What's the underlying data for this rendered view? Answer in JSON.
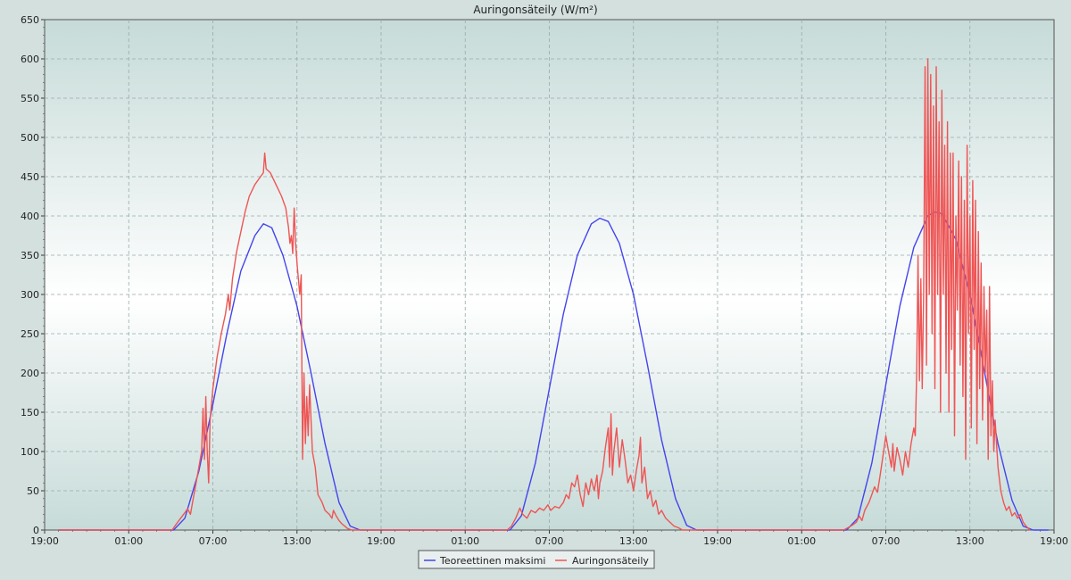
{
  "chart_data": {
    "type": "line",
    "title": "Auringonsäteily (W/m²)",
    "xlabel": "",
    "ylabel": "",
    "x_unit": "hours",
    "xlim": [
      0,
      72
    ],
    "ylim": [
      0,
      650
    ],
    "yticks": [
      0,
      50,
      100,
      150,
      200,
      250,
      300,
      350,
      400,
      450,
      500,
      550,
      600,
      650
    ],
    "xticks": [
      {
        "x": 0,
        "label": "19:00"
      },
      {
        "x": 6,
        "label": "01:00"
      },
      {
        "x": 12,
        "label": "07:00"
      },
      {
        "x": 18,
        "label": "13:00"
      },
      {
        "x": 24,
        "label": "19:00"
      },
      {
        "x": 30,
        "label": "01:00"
      },
      {
        "x": 36,
        "label": "07:00"
      },
      {
        "x": 42,
        "label": "13:00"
      },
      {
        "x": 48,
        "label": "19:00"
      },
      {
        "x": 54,
        "label": "01:00"
      },
      {
        "x": 60,
        "label": "07:00"
      },
      {
        "x": 66,
        "label": "13:00"
      },
      {
        "x": 72,
        "label": "19:00"
      }
    ],
    "grid": true,
    "legend_position": "bottom-center",
    "series": [
      {
        "name": "Teoreettinen maksimi",
        "color": "#4444ee",
        "points": [
          [
            1,
            0
          ],
          [
            8,
            0
          ],
          [
            9.2,
            0
          ],
          [
            10,
            15
          ],
          [
            11,
            75
          ],
          [
            12,
            160
          ],
          [
            13,
            250
          ],
          [
            14,
            330
          ],
          [
            15,
            375
          ],
          [
            15.6,
            390
          ],
          [
            16.2,
            385
          ],
          [
            17,
            350
          ],
          [
            18,
            285
          ],
          [
            19,
            200
          ],
          [
            20,
            110
          ],
          [
            21,
            35
          ],
          [
            21.8,
            5
          ],
          [
            22.5,
            0
          ],
          [
            33,
            0
          ],
          [
            33.2,
            0
          ],
          [
            34,
            18
          ],
          [
            35,
            85
          ],
          [
            36,
            180
          ],
          [
            37,
            275
          ],
          [
            38,
            350
          ],
          [
            39,
            390
          ],
          [
            39.6,
            397
          ],
          [
            40.2,
            393
          ],
          [
            41,
            365
          ],
          [
            42,
            300
          ],
          [
            43,
            210
          ],
          [
            44,
            115
          ],
          [
            45,
            40
          ],
          [
            45.8,
            6
          ],
          [
            46.5,
            0
          ],
          [
            57,
            0
          ],
          [
            57.2,
            0
          ],
          [
            58,
            15
          ],
          [
            59,
            85
          ],
          [
            60,
            185
          ],
          [
            61,
            285
          ],
          [
            62,
            360
          ],
          [
            63,
            400
          ],
          [
            63.5,
            405
          ],
          [
            64,
            403
          ],
          [
            65,
            370
          ],
          [
            66,
            300
          ],
          [
            67,
            205
          ],
          [
            68,
            110
          ],
          [
            69,
            38
          ],
          [
            69.8,
            5
          ],
          [
            70.5,
            0
          ],
          [
            71.6,
            0
          ]
        ]
      },
      {
        "name": "Auringonsäteily",
        "color": "#ee5555",
        "points": [
          [
            1,
            0
          ],
          [
            9.1,
            0
          ],
          [
            9.4,
            8
          ],
          [
            9.7,
            15
          ],
          [
            10,
            22
          ],
          [
            10.2,
            27
          ],
          [
            10.4,
            20
          ],
          [
            10.6,
            40
          ],
          [
            10.8,
            60
          ],
          [
            11,
            80
          ],
          [
            11.2,
            100
          ],
          [
            11.3,
            155
          ],
          [
            11.4,
            90
          ],
          [
            11.5,
            170
          ],
          [
            11.6,
            100
          ],
          [
            11.7,
            60
          ],
          [
            11.8,
            140
          ],
          [
            12,
            180
          ],
          [
            12.3,
            220
          ],
          [
            12.6,
            250
          ],
          [
            12.9,
            275
          ],
          [
            13.1,
            300
          ],
          [
            13.2,
            280
          ],
          [
            13.4,
            320
          ],
          [
            13.7,
            355
          ],
          [
            14,
            380
          ],
          [
            14.3,
            405
          ],
          [
            14.6,
            425
          ],
          [
            15,
            440
          ],
          [
            15.4,
            450
          ],
          [
            15.6,
            455
          ],
          [
            15.7,
            480
          ],
          [
            15.8,
            460
          ],
          [
            16.1,
            455
          ],
          [
            16.5,
            440
          ],
          [
            16.9,
            425
          ],
          [
            17.2,
            410
          ],
          [
            17.4,
            385
          ],
          [
            17.5,
            365
          ],
          [
            17.6,
            375
          ],
          [
            17.7,
            352
          ],
          [
            17.8,
            410
          ],
          [
            17.9,
            365
          ],
          [
            18,
            340
          ],
          [
            18.1,
            320
          ],
          [
            18.2,
            300
          ],
          [
            18.3,
            325
          ],
          [
            18.4,
            90
          ],
          [
            18.5,
            200
          ],
          [
            18.6,
            110
          ],
          [
            18.7,
            170
          ],
          [
            18.8,
            120
          ],
          [
            18.9,
            185
          ],
          [
            19,
            140
          ],
          [
            19.1,
            100
          ],
          [
            19.3,
            80
          ],
          [
            19.5,
            45
          ],
          [
            19.8,
            35
          ],
          [
            20,
            25
          ],
          [
            20.3,
            20
          ],
          [
            20.5,
            15
          ],
          [
            20.6,
            25
          ],
          [
            20.8,
            18
          ],
          [
            21,
            12
          ],
          [
            21.2,
            8
          ],
          [
            21.4,
            5
          ],
          [
            21.6,
            2
          ],
          [
            21.9,
            0
          ],
          [
            33,
            0
          ],
          [
            33.3,
            5
          ],
          [
            33.6,
            15
          ],
          [
            33.9,
            28
          ],
          [
            34.1,
            20
          ],
          [
            34.4,
            15
          ],
          [
            34.7,
            25
          ],
          [
            35,
            22
          ],
          [
            35.3,
            28
          ],
          [
            35.6,
            25
          ],
          [
            35.9,
            32
          ],
          [
            36.1,
            25
          ],
          [
            36.4,
            30
          ],
          [
            36.7,
            28
          ],
          [
            37,
            35
          ],
          [
            37.2,
            45
          ],
          [
            37.4,
            40
          ],
          [
            37.6,
            60
          ],
          [
            37.8,
            55
          ],
          [
            38,
            70
          ],
          [
            38.2,
            45
          ],
          [
            38.4,
            30
          ],
          [
            38.6,
            60
          ],
          [
            38.8,
            45
          ],
          [
            39,
            65
          ],
          [
            39.2,
            50
          ],
          [
            39.4,
            70
          ],
          [
            39.5,
            40
          ],
          [
            39.6,
            60
          ],
          [
            39.8,
            75
          ],
          [
            40,
            105
          ],
          [
            40.2,
            130
          ],
          [
            40.3,
            80
          ],
          [
            40.4,
            148
          ],
          [
            40.5,
            70
          ],
          [
            40.6,
            100
          ],
          [
            40.8,
            130
          ],
          [
            41,
            80
          ],
          [
            41.2,
            115
          ],
          [
            41.4,
            90
          ],
          [
            41.6,
            60
          ],
          [
            41.8,
            70
          ],
          [
            42,
            50
          ],
          [
            42.2,
            75
          ],
          [
            42.4,
            95
          ],
          [
            42.5,
            118
          ],
          [
            42.6,
            60
          ],
          [
            42.8,
            80
          ],
          [
            43,
            40
          ],
          [
            43.2,
            50
          ],
          [
            43.4,
            30
          ],
          [
            43.6,
            38
          ],
          [
            43.8,
            20
          ],
          [
            44,
            25
          ],
          [
            44.3,
            15
          ],
          [
            44.6,
            10
          ],
          [
            44.9,
            5
          ],
          [
            45.2,
            3
          ],
          [
            45.5,
            0
          ],
          [
            57,
            0
          ],
          [
            57.3,
            3
          ],
          [
            57.6,
            6
          ],
          [
            57.9,
            10
          ],
          [
            58.1,
            18
          ],
          [
            58.3,
            12
          ],
          [
            58.5,
            25
          ],
          [
            58.8,
            35
          ],
          [
            59,
            45
          ],
          [
            59.2,
            55
          ],
          [
            59.4,
            48
          ],
          [
            59.6,
            70
          ],
          [
            59.8,
            95
          ],
          [
            60,
            120
          ],
          [
            60.2,
            100
          ],
          [
            60.4,
            80
          ],
          [
            60.5,
            110
          ],
          [
            60.6,
            75
          ],
          [
            60.8,
            105
          ],
          [
            61,
            90
          ],
          [
            61.2,
            70
          ],
          [
            61.4,
            100
          ],
          [
            61.6,
            80
          ],
          [
            61.8,
            110
          ],
          [
            62,
            130
          ],
          [
            62.1,
            120
          ],
          [
            62.2,
            200
          ],
          [
            62.3,
            350
          ],
          [
            62.4,
            190
          ],
          [
            62.5,
            320
          ],
          [
            62.6,
            180
          ],
          [
            62.7,
            300
          ],
          [
            62.8,
            590
          ],
          [
            62.9,
            210
          ],
          [
            63,
            600
          ],
          [
            63.1,
            300
          ],
          [
            63.2,
            580
          ],
          [
            63.3,
            250
          ],
          [
            63.4,
            540
          ],
          [
            63.5,
            180
          ],
          [
            63.6,
            590
          ],
          [
            63.7,
            300
          ],
          [
            63.8,
            520
          ],
          [
            63.9,
            150
          ],
          [
            64,
            560
          ],
          [
            64.1,
            300
          ],
          [
            64.2,
            490
          ],
          [
            64.3,
            200
          ],
          [
            64.4,
            520
          ],
          [
            64.5,
            150
          ],
          [
            64.6,
            480
          ],
          [
            64.7,
            230
          ],
          [
            64.8,
            480
          ],
          [
            64.9,
            120
          ],
          [
            65,
            400
          ],
          [
            65.1,
            280
          ],
          [
            65.2,
            470
          ],
          [
            65.3,
            210
          ],
          [
            65.4,
            450
          ],
          [
            65.5,
            170
          ],
          [
            65.6,
            420
          ],
          [
            65.7,
            90
          ],
          [
            65.8,
            490
          ],
          [
            65.9,
            250
          ],
          [
            66,
            400
          ],
          [
            66.1,
            130
          ],
          [
            66.2,
            445
          ],
          [
            66.3,
            230
          ],
          [
            66.4,
            420
          ],
          [
            66.5,
            110
          ],
          [
            66.6,
            380
          ],
          [
            66.7,
            180
          ],
          [
            66.8,
            340
          ],
          [
            66.9,
            140
          ],
          [
            67,
            310
          ],
          [
            67.1,
            200
          ],
          [
            67.2,
            280
          ],
          [
            67.3,
            90
          ],
          [
            67.4,
            310
          ],
          [
            67.5,
            120
          ],
          [
            67.6,
            190
          ],
          [
            67.7,
            100
          ],
          [
            67.8,
            140
          ],
          [
            68,
            80
          ],
          [
            68.2,
            50
          ],
          [
            68.4,
            35
          ],
          [
            68.6,
            25
          ],
          [
            68.8,
            30
          ],
          [
            69,
            18
          ],
          [
            69.2,
            22
          ],
          [
            69.4,
            15
          ],
          [
            69.6,
            20
          ],
          [
            69.8,
            10
          ],
          [
            70,
            5
          ],
          [
            70.3,
            0
          ]
        ]
      }
    ]
  }
}
